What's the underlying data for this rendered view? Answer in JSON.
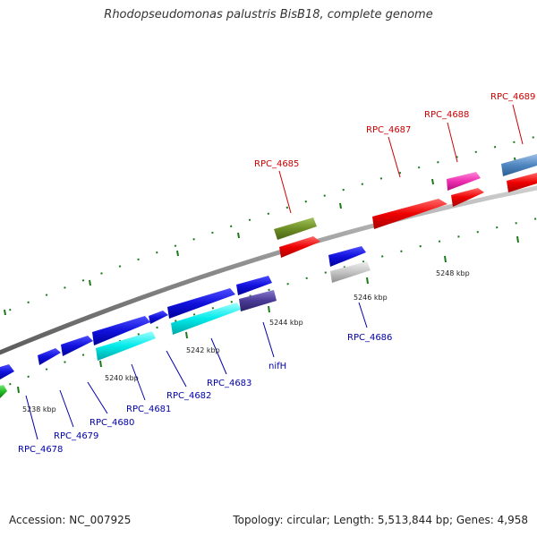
{
  "title": "Rhodopseudomonas palustris BisB18, complete genome",
  "footer": {
    "accession": "Accession: NC_007925",
    "stats": "Topology: circular; Length: 5,513,844 bp; Genes: 4,958"
  },
  "colors": {
    "backbone": "#8c8c8c",
    "tick": "#1a7a1a",
    "label_top": "#cc0000",
    "label_bottom": "#0000aa"
  },
  "tick_labels": [
    "5238 kbp",
    "5240 kbp",
    "5242 kbp",
    "5244 kbp",
    "5246 kbp",
    "5248 kbp"
  ],
  "gene_labels": {
    "top": [
      "RPC_4685",
      "RPC_4687",
      "RPC_4688",
      "RPC_4689"
    ],
    "bottom": [
      "RPC_4678",
      "RPC_4679",
      "RPC_4680",
      "RPC_4681",
      "RPC_4682",
      "RPC_4683",
      "nifH",
      "RPC_4686"
    ]
  }
}
